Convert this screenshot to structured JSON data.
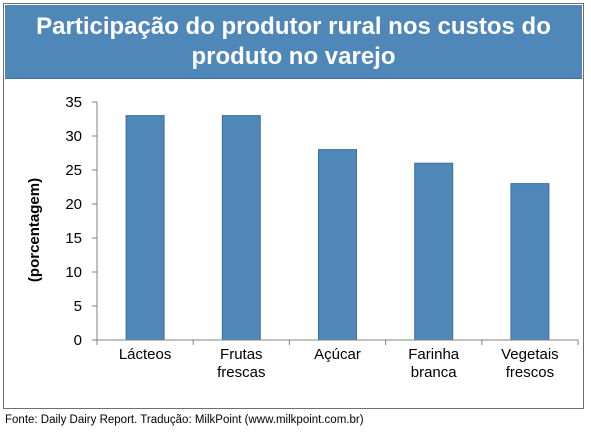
{
  "chart_data": {
    "type": "bar",
    "title_lines": [
      "Participação do produtor rural nos custos do",
      "produto no varejo"
    ],
    "ylabel": "(porcentagem)",
    "xlabel": "",
    "categories": [
      [
        "Lácteos"
      ],
      [
        "Frutas",
        "frescas"
      ],
      [
        "Açúcar"
      ],
      [
        "Farinha",
        "branca"
      ],
      [
        "Vegetais",
        "frescos"
      ]
    ],
    "values": [
      33,
      33,
      28,
      26,
      23
    ],
    "ylim": [
      0,
      35
    ],
    "yticks": [
      0,
      5,
      10,
      15,
      20,
      25,
      30,
      35
    ],
    "grid": false,
    "legend": "none",
    "colors": {
      "bar": "#4f87b9",
      "bar_edge": "#3f6f9c",
      "title_bg": "#4f87b9",
      "axis": "#808080"
    }
  },
  "source_text": "Fonte: Daily Dairy Report. Tradução: MilkPoint (www.milkpoint.com.br)"
}
